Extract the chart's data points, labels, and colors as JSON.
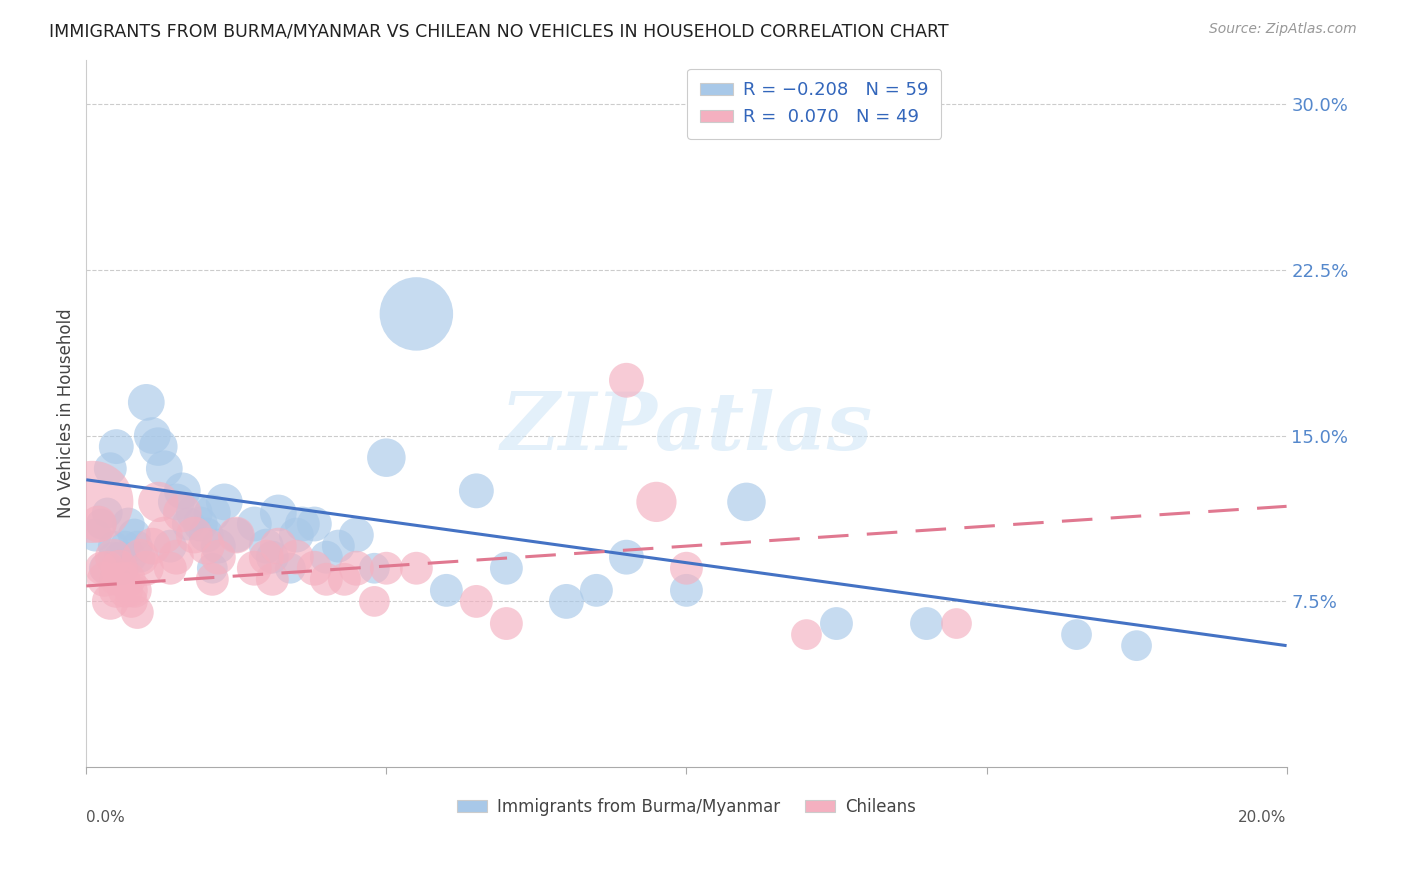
{
  "title": "IMMIGRANTS FROM BURMA/MYANMAR VS CHILEAN NO VEHICLES IN HOUSEHOLD CORRELATION CHART",
  "source": "Source: ZipAtlas.com",
  "ylabel": "No Vehicles in Household",
  "legend_label1": "Immigrants from Burma/Myanmar",
  "legend_label2": "Chileans",
  "blue_color": "#a8c8e8",
  "pink_color": "#f4b0c0",
  "trend_blue": "#4472c4",
  "trend_pink": "#e07890",
  "xmin": 0.0,
  "xmax": 20.0,
  "ymin": 0.0,
  "ymax": 32.0,
  "right_yticks": [
    7.5,
    15.0,
    22.5,
    30.0
  ],
  "right_yticklabels": [
    "7.5%",
    "15.0%",
    "22.5%",
    "30.0%"
  ],
  "blue_line_x": [
    0.0,
    20.0
  ],
  "blue_line_y": [
    13.0,
    5.5
  ],
  "pink_line_x": [
    0.0,
    20.0
  ],
  "pink_line_y": [
    8.2,
    11.8
  ],
  "watermark": "ZIPatlas",
  "blue_scatter_x": [
    0.15,
    0.25,
    0.35,
    0.4,
    0.45,
    0.5,
    0.55,
    0.6,
    0.65,
    0.7,
    0.75,
    0.8,
    0.85,
    0.9,
    1.0,
    1.1,
    1.2,
    1.3,
    1.5,
    1.6,
    1.8,
    1.9,
    2.0,
    2.1,
    2.2,
    2.3,
    2.5,
    2.8,
    3.0,
    3.2,
    3.5,
    3.6,
    3.8,
    4.0,
    4.2,
    4.5,
    5.0,
    5.5,
    6.0,
    7.0,
    8.0,
    8.5,
    9.0,
    10.0,
    11.0,
    12.5,
    14.0,
    16.5,
    17.5,
    0.3,
    0.45,
    0.6,
    1.4,
    1.7,
    2.1,
    3.1,
    3.4,
    4.8,
    6.5
  ],
  "blue_scatter_y": [
    10.5,
    11.0,
    11.5,
    13.5,
    10.0,
    14.5,
    9.5,
    9.0,
    10.0,
    11.0,
    9.5,
    10.5,
    10.0,
    9.5,
    16.5,
    15.0,
    14.5,
    13.5,
    12.0,
    12.5,
    11.5,
    11.0,
    10.5,
    11.5,
    10.0,
    12.0,
    10.5,
    11.0,
    10.0,
    11.5,
    10.5,
    11.0,
    11.0,
    9.5,
    10.0,
    10.5,
    14.0,
    20.5,
    8.0,
    9.0,
    7.5,
    8.0,
    9.5,
    8.0,
    12.0,
    6.5,
    6.5,
    6.0,
    5.5,
    9.0,
    9.5,
    9.0,
    10.0,
    11.0,
    9.0,
    9.5,
    9.0,
    9.0,
    12.5
  ],
  "blue_scatter_size": [
    40,
    35,
    35,
    40,
    35,
    45,
    35,
    40,
    35,
    40,
    35,
    40,
    35,
    35,
    50,
    50,
    55,
    50,
    50,
    50,
    50,
    45,
    45,
    50,
    45,
    50,
    45,
    45,
    45,
    50,
    45,
    45,
    45,
    40,
    40,
    45,
    55,
    200,
    40,
    40,
    45,
    40,
    45,
    40,
    55,
    40,
    40,
    35,
    35,
    35,
    35,
    35,
    40,
    40,
    35,
    40,
    35,
    35,
    45
  ],
  "pink_scatter_x": [
    0.1,
    0.2,
    0.3,
    0.35,
    0.4,
    0.45,
    0.5,
    0.55,
    0.6,
    0.65,
    0.7,
    0.75,
    0.8,
    0.85,
    0.9,
    1.0,
    1.1,
    1.2,
    1.3,
    1.5,
    1.6,
    1.8,
    2.0,
    2.2,
    2.5,
    2.8,
    3.0,
    3.2,
    3.5,
    3.8,
    4.0,
    4.3,
    4.5,
    5.0,
    5.5,
    6.5,
    7.0,
    9.0,
    9.5,
    10.0,
    12.0,
    14.5,
    0.25,
    0.5,
    0.75,
    1.4,
    2.1,
    3.1,
    4.8
  ],
  "pink_scatter_y": [
    12.0,
    11.0,
    8.5,
    9.0,
    7.5,
    9.5,
    8.0,
    9.0,
    8.5,
    8.0,
    8.5,
    7.5,
    8.0,
    7.0,
    9.5,
    9.0,
    10.0,
    12.0,
    10.5,
    9.5,
    11.5,
    10.5,
    10.0,
    9.5,
    10.5,
    9.0,
    9.5,
    10.0,
    9.5,
    9.0,
    8.5,
    8.5,
    9.0,
    9.0,
    9.0,
    7.5,
    6.5,
    17.5,
    12.0,
    9.0,
    6.0,
    6.5,
    9.0,
    8.5,
    8.0,
    9.0,
    8.5,
    8.5,
    7.5
  ],
  "pink_scatter_size": [
    250,
    50,
    45,
    45,
    50,
    50,
    45,
    50,
    45,
    45,
    45,
    40,
    45,
    40,
    50,
    45,
    50,
    60,
    50,
    45,
    55,
    50,
    50,
    45,
    50,
    45,
    45,
    50,
    45,
    45,
    40,
    40,
    45,
    40,
    40,
    40,
    40,
    45,
    60,
    40,
    35,
    35,
    40,
    40,
    40,
    40,
    40,
    40,
    35
  ]
}
